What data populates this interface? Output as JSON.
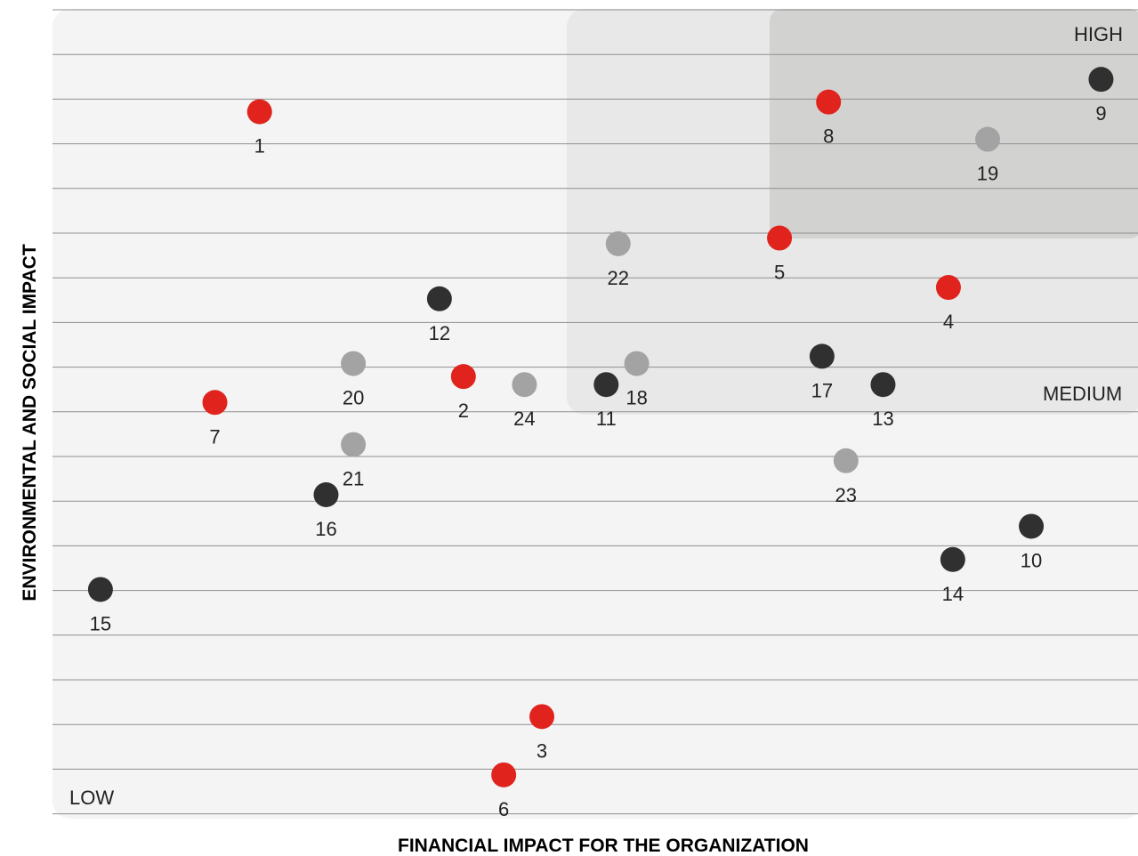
{
  "chart_data": {
    "type": "scatter",
    "title": "",
    "xlabel": "FINANCIAL IMPACT FOR THE ORGANIZATION",
    "ylabel": "ENVIRONMENTAL AND SOCIAL IMPACT",
    "xlim": [
      0,
      100
    ],
    "ylim": [
      0,
      100
    ],
    "grid": "horizontal",
    "zones": [
      {
        "name": "low",
        "label": "LOW",
        "color": "#f4f4f4"
      },
      {
        "name": "medium",
        "label": "MEDIUM",
        "color": "#e8e8e8"
      },
      {
        "name": "high",
        "label": "HIGH",
        "color": "#d2d2d1"
      }
    ],
    "colors": {
      "red": "#e0241d",
      "dark": "#303030",
      "light": "#a3a3a3"
    },
    "points": [
      {
        "label": "1",
        "x": 19.0,
        "y": 87.3,
        "color": "red"
      },
      {
        "label": "2",
        "x": 37.7,
        "y": 54.6,
        "color": "red"
      },
      {
        "label": "3",
        "x": 44.9,
        "y": 12.6,
        "color": "red"
      },
      {
        "label": "4",
        "x": 82.2,
        "y": 65.6,
        "color": "red"
      },
      {
        "label": "5",
        "x": 66.7,
        "y": 71.7,
        "color": "red"
      },
      {
        "label": "6",
        "x": 41.4,
        "y": 5.4,
        "color": "red"
      },
      {
        "label": "7",
        "x": 14.9,
        "y": 51.4,
        "color": "red"
      },
      {
        "label": "8",
        "x": 71.2,
        "y": 88.5,
        "color": "red"
      },
      {
        "label": "9",
        "x": 96.2,
        "y": 91.3,
        "color": "dark"
      },
      {
        "label": "10",
        "x": 89.8,
        "y": 36.1,
        "color": "dark"
      },
      {
        "label": "11",
        "x": 50.8,
        "y": 53.6,
        "color": "dark"
      },
      {
        "label": "12",
        "x": 35.5,
        "y": 64.2,
        "color": "dark"
      },
      {
        "label": "13",
        "x": 76.2,
        "y": 53.6,
        "color": "dark"
      },
      {
        "label": "14",
        "x": 82.6,
        "y": 32.0,
        "color": "dark"
      },
      {
        "label": "15",
        "x": 4.4,
        "y": 28.3,
        "color": "dark"
      },
      {
        "label": "16",
        "x": 25.1,
        "y": 40.0,
        "color": "dark"
      },
      {
        "label": "17",
        "x": 70.6,
        "y": 57.1,
        "color": "dark"
      },
      {
        "label": "18",
        "x": 53.6,
        "y": 56.2,
        "color": "light"
      },
      {
        "label": "19",
        "x": 85.8,
        "y": 83.9,
        "color": "light"
      },
      {
        "label": "20",
        "x": 27.6,
        "y": 56.2,
        "color": "light"
      },
      {
        "label": "21",
        "x": 27.6,
        "y": 46.2,
        "color": "light"
      },
      {
        "label": "22",
        "x": 51.9,
        "y": 71.0,
        "color": "light"
      },
      {
        "label": "23",
        "x": 72.8,
        "y": 44.2,
        "color": "light"
      },
      {
        "label": "24",
        "x": 43.3,
        "y": 53.6,
        "color": "light"
      }
    ]
  }
}
